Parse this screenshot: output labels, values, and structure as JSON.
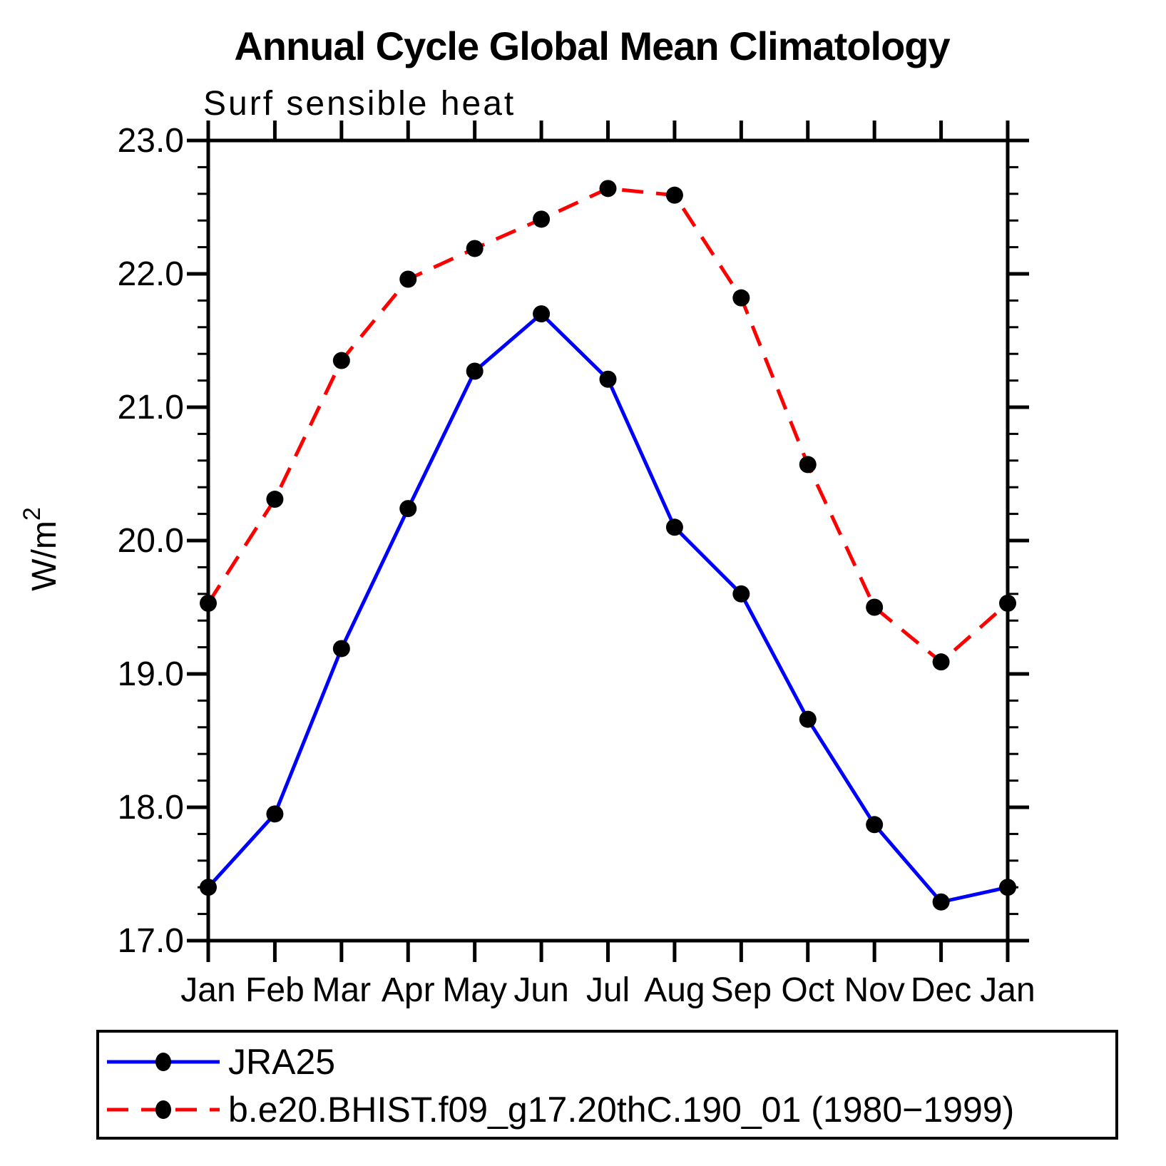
{
  "chart_data": {
    "type": "line",
    "title": "Annual Cycle Global Mean Climatology",
    "subtitle": "Surf sensible heat",
    "ylabel_base": "W/m",
    "ylabel_exponent": "2",
    "x_tick_labels": [
      "Jan",
      "Feb",
      "Mar",
      "Apr",
      "May",
      "Jun",
      "Jul",
      "Aug",
      "Sep",
      "Oct",
      "Nov",
      "Dec",
      "Jan"
    ],
    "y_ticks": [
      {
        "value": 17.0,
        "label": "17.0"
      },
      {
        "value": 18.0,
        "label": "18.0"
      },
      {
        "value": 19.0,
        "label": "19.0"
      },
      {
        "value": 20.0,
        "label": "20.0"
      },
      {
        "value": 21.0,
        "label": "21.0"
      },
      {
        "value": 22.0,
        "label": "22.0"
      },
      {
        "value": 23.0,
        "label": "23.0"
      }
    ],
    "ylim": [
      17.0,
      23.0
    ],
    "y_minor_step": 0.2,
    "grid": false,
    "background_color": "#ffffff",
    "axis_color": "#000000",
    "marker_color": "#000000",
    "legend_position": "bottom",
    "series": [
      {
        "key": "jra25",
        "name": "JRA25",
        "color": "#0000ff",
        "line_style": "solid",
        "marker": "filled-circle",
        "values": [
          17.4,
          17.95,
          19.19,
          20.24,
          21.27,
          21.7,
          21.21,
          20.1,
          19.6,
          18.66,
          17.87,
          17.29,
          17.4
        ]
      },
      {
        "key": "bhist",
        "name": "b.e20.BHIST.f09_g17.20thC.190_01 (1980−1999)",
        "color": "#ff0000",
        "line_style": "dashed",
        "marker": "filled-circle",
        "values": [
          19.53,
          20.31,
          21.35,
          21.96,
          22.19,
          22.41,
          22.64,
          22.59,
          21.82,
          20.57,
          19.5,
          19.09,
          19.53
        ]
      }
    ]
  }
}
